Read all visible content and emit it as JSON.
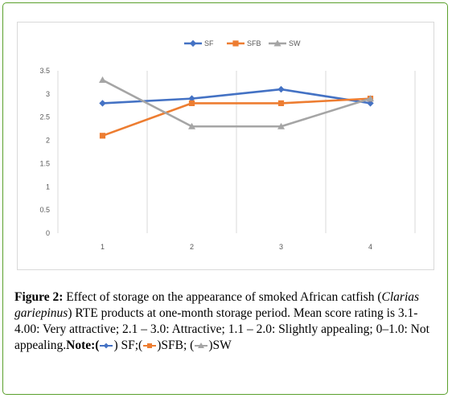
{
  "chart_data": {
    "type": "line",
    "categories": [
      "1",
      "2",
      "3",
      "4"
    ],
    "series": [
      {
        "name": "SF",
        "values": [
          2.8,
          2.9,
          3.1,
          2.8
        ],
        "color": "#4472c4",
        "marker": "diamond"
      },
      {
        "name": "SFB",
        "values": [
          2.1,
          2.8,
          2.8,
          2.9
        ],
        "color": "#ed7d31",
        "marker": "square"
      },
      {
        "name": "SW",
        "values": [
          3.3,
          2.3,
          2.3,
          2.9
        ],
        "color": "#a5a5a5",
        "marker": "triangle"
      }
    ],
    "y_ticks": [
      "0",
      "0.5",
      "1",
      "1.5",
      "2",
      "2.5",
      "3",
      "3.5"
    ],
    "ylim": [
      0,
      3.5
    ],
    "grid": "vertical",
    "legend_position": "top",
    "title": "",
    "xlabel": "",
    "ylabel": ""
  },
  "caption": {
    "label": "Figure 2:",
    "text_1": " Effect of storage on the appearance of smoked African catfish (",
    "species": "Clarias gariepinus",
    "text_2": ") RTE products at one-month storage period. Mean score rating is 3.1-4.00: Very attractive; 2.1 – 3.0: Attractive; 1.1 – 2.0: Slightly appealing; 0–1.0: Not appealing.",
    "note_label": "Note:",
    "note_open": "(",
    "note_sf": ") SF;(",
    "note_sfb": ")SFB;",
    "note_sw_open": "(",
    "note_sw": ")SW"
  }
}
